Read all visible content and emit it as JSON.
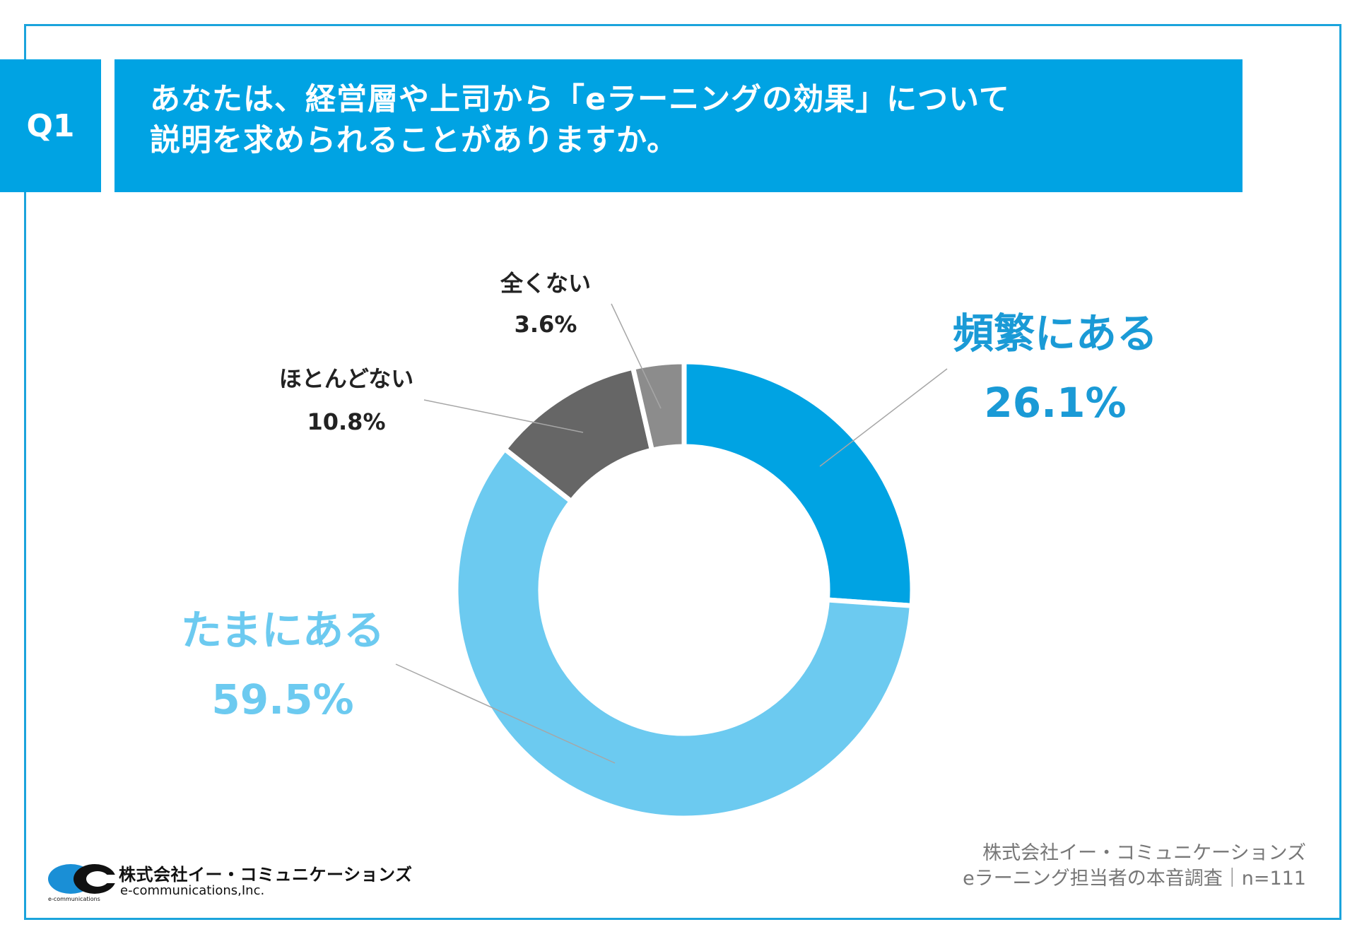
{
  "question": {
    "badge": "Q1",
    "line1": "あなたは、経営層や上司から「eラーニングの効果」について",
    "line2": "説明を求められることがありますか。"
  },
  "chart_data": {
    "type": "pie",
    "donut": true,
    "categories": [
      "頻繁にある",
      "たまにある",
      "ほとんどない",
      "全くない"
    ],
    "values": [
      26.1,
      59.5,
      10.8,
      3.6
    ],
    "value_labels": [
      "26.1%",
      "59.5%",
      "10.8%",
      "3.6%"
    ],
    "colors": [
      "#00a3e3",
      "#6ccaf0",
      "#666666",
      "#8c8c8c"
    ],
    "label_colors": [
      "#1a9ad6",
      "#6ccaf0",
      "#222222",
      "#222222"
    ]
  },
  "footer": {
    "credit_line1": "株式会社イー・コミュニケーションズ",
    "credit_line2": "eラーニング担当者の本音調査｜n=111",
    "logo_ja": "株式会社イー・コミュニケーションズ",
    "logo_en": "e-communications,Inc.",
    "logo_small": "e-communications"
  }
}
